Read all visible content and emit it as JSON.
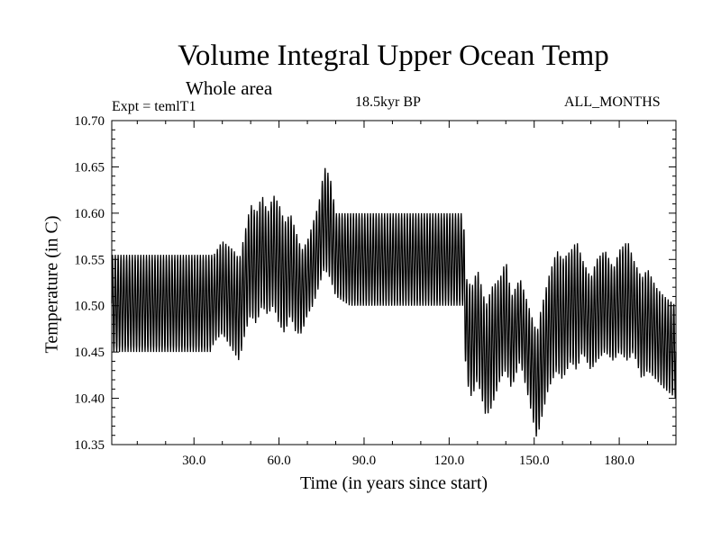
{
  "chart_data": {
    "type": "line",
    "title": "Volume Integral Upper Ocean Temp",
    "subtitle": "Whole area",
    "experiment_label": "Expt = temlT1",
    "period_label": "18.5kyr BP",
    "months_label": "ALL_MONTHS",
    "xlabel": "Time (in years since start)",
    "ylabel": "Temperature (in C)",
    "xlim": [
      1,
      200
    ],
    "ylim": [
      10.35,
      10.7
    ],
    "x_ticks": [
      30,
      60,
      90,
      120,
      150,
      180
    ],
    "x_tick_labels": [
      "30.0",
      "60.0",
      "90.0",
      "120.0",
      "150.0",
      "180.0"
    ],
    "y_ticks": [
      10.35,
      10.4,
      10.45,
      10.5,
      10.55,
      10.6,
      10.65,
      10.7
    ],
    "y_tick_labels": [
      "10.35",
      "10.40",
      "10.45",
      "10.50",
      "10.55",
      "10.60",
      "10.65",
      "10.70"
    ],
    "grid": false,
    "series": [
      {
        "name": "Temperature",
        "note": "monthly values oscillating between a low and high envelope each year",
        "envelope_x": [
          1,
          36,
          37,
          40,
          44,
          46,
          48,
          50,
          52,
          54,
          56,
          58,
          60,
          62,
          64,
          66,
          68,
          70,
          72,
          74,
          76,
          78,
          80,
          85,
          125,
          126,
          128,
          130,
          133,
          135,
          138,
          140,
          142,
          145,
          148,
          150,
          151,
          152,
          155,
          158,
          160,
          163,
          165,
          167,
          170,
          172,
          175,
          178,
          180,
          183,
          185,
          188,
          190,
          193,
          196,
          200
        ],
        "envelope_low": [
          10.45,
          10.45,
          10.46,
          10.47,
          10.45,
          10.44,
          10.47,
          10.49,
          10.48,
          10.5,
          10.49,
          10.5,
          10.48,
          10.47,
          10.49,
          10.47,
          10.47,
          10.49,
          10.5,
          10.52,
          10.54,
          10.53,
          10.51,
          10.5,
          10.5,
          10.42,
          10.4,
          10.42,
          10.38,
          10.39,
          10.42,
          10.43,
          10.41,
          10.44,
          10.4,
          10.37,
          10.355,
          10.37,
          10.41,
          10.43,
          10.42,
          10.44,
          10.43,
          10.45,
          10.43,
          10.44,
          10.45,
          10.44,
          10.45,
          10.44,
          10.45,
          10.42,
          10.43,
          10.42,
          10.41,
          10.4
        ],
        "envelope_high": [
          10.555,
          10.555,
          10.555,
          10.57,
          10.56,
          10.55,
          10.58,
          10.61,
          10.6,
          10.62,
          10.6,
          10.62,
          10.61,
          10.59,
          10.6,
          10.58,
          10.56,
          10.57,
          10.59,
          10.61,
          10.65,
          10.64,
          10.6,
          10.6,
          10.6,
          10.53,
          10.52,
          10.54,
          10.5,
          10.52,
          10.53,
          10.55,
          10.51,
          10.53,
          10.5,
          10.48,
          10.47,
          10.49,
          10.53,
          10.56,
          10.55,
          10.56,
          10.57,
          10.55,
          10.53,
          10.55,
          10.56,
          10.54,
          10.56,
          10.57,
          10.55,
          10.53,
          10.54,
          10.52,
          10.51,
          10.5
        ]
      }
    ]
  }
}
